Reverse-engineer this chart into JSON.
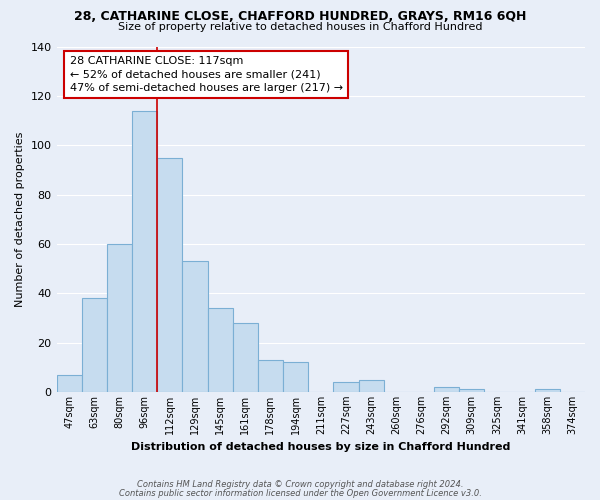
{
  "title1": "28, CATHARINE CLOSE, CHAFFORD HUNDRED, GRAYS, RM16 6QH",
  "title2": "Size of property relative to detached houses in Chafford Hundred",
  "xlabel": "Distribution of detached houses by size in Chafford Hundred",
  "ylabel": "Number of detached properties",
  "footnote1": "Contains HM Land Registry data © Crown copyright and database right 2024.",
  "footnote2": "Contains public sector information licensed under the Open Government Licence v3.0.",
  "bin_labels": [
    "47sqm",
    "63sqm",
    "80sqm",
    "96sqm",
    "112sqm",
    "129sqm",
    "145sqm",
    "161sqm",
    "178sqm",
    "194sqm",
    "211sqm",
    "227sqm",
    "243sqm",
    "260sqm",
    "276sqm",
    "292sqm",
    "309sqm",
    "325sqm",
    "341sqm",
    "358sqm",
    "374sqm"
  ],
  "bar_values": [
    7,
    38,
    60,
    114,
    95,
    53,
    34,
    28,
    13,
    12,
    0,
    4,
    5,
    0,
    0,
    2,
    1,
    0,
    0,
    1,
    0
  ],
  "bar_color": "#c6dcef",
  "bar_edge_color": "#7bafd4",
  "property_line_color": "#cc0000",
  "annotation_text": "28 CATHARINE CLOSE: 117sqm\n← 52% of detached houses are smaller (241)\n47% of semi-detached houses are larger (217) →",
  "annotation_box_color": "white",
  "annotation_box_edge_color": "#cc0000",
  "ylim": [
    0,
    140
  ],
  "yticks": [
    0,
    20,
    40,
    60,
    80,
    100,
    120,
    140
  ],
  "background_color": "#e8eef8",
  "plot_bg_color": "#e8eef8",
  "grid_color": "white"
}
